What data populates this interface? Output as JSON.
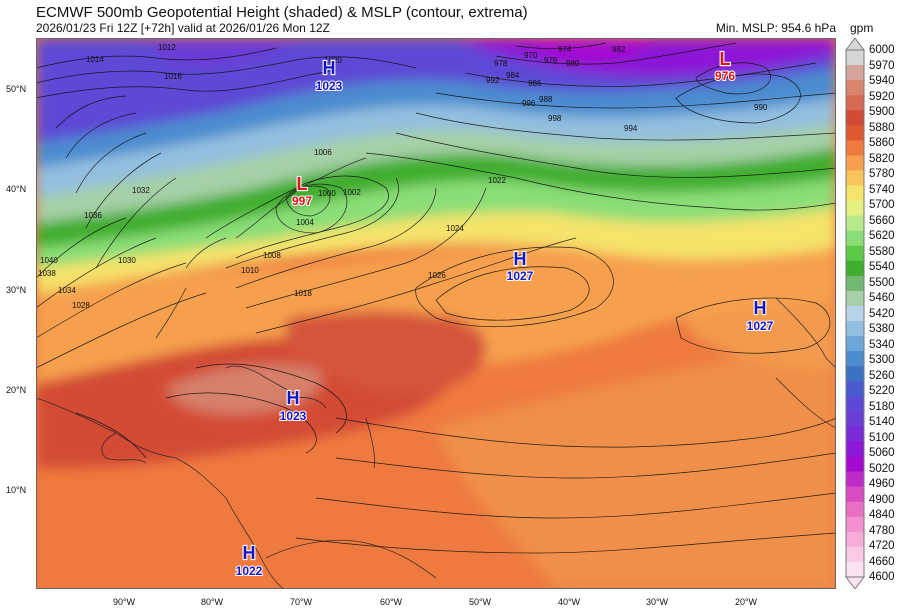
{
  "header": {
    "title": "ECMWF 500mb Geopotential Height (shaded) & MSLP (contour, extrema)",
    "subtitle": "2026/01/23 Fri 12Z [+72h] valid at 2026/01/26 Mon 12Z",
    "min_mslp": "Min. MSLP: 954.6 hPa",
    "unit": "gpm"
  },
  "axes": {
    "lat_labels": [
      "50°N",
      "40°N",
      "30°N",
      "20°N",
      "10°N"
    ],
    "lon_labels": [
      "90°W",
      "80°W",
      "70°W",
      "60°W",
      "50°W",
      "40°W",
      "30°W",
      "20°W"
    ]
  },
  "colorbar": {
    "labels": [
      "6000",
      "5970",
      "5940",
      "5920",
      "5900",
      "5880",
      "5860",
      "5820",
      "5780",
      "5740",
      "5700",
      "5660",
      "5620",
      "5580",
      "5540",
      "5500",
      "5460",
      "5420",
      "5380",
      "5340",
      "5300",
      "5260",
      "5220",
      "5180",
      "5140",
      "5100",
      "5060",
      "5020",
      "4960",
      "4900",
      "4840",
      "4780",
      "4720",
      "4660",
      "4600"
    ],
    "colors": [
      "#d6d6d6",
      "#d5a59c",
      "#d9846f",
      "#d66a55",
      "#d34b36",
      "#e0582f",
      "#ee7a3f",
      "#f6a04e",
      "#f9c45c",
      "#f5e36c",
      "#e4f07f",
      "#b8e98d",
      "#8bde77",
      "#5dc949",
      "#3fad2d",
      "#71b872",
      "#a6d0a7",
      "#b8d3e8",
      "#93bfe0",
      "#6da6d8",
      "#4b8ccf",
      "#3c72c2",
      "#4a5ad0",
      "#5d49d6",
      "#6b3ed6",
      "#7a2cd8",
      "#8d17d6",
      "#a40ad2",
      "#c02ac9",
      "#d84bc2",
      "#ea6fc4",
      "#f38ecf",
      "#f6acd9",
      "#f9c9e6",
      "#fbe3f1"
    ]
  },
  "extrema": [
    {
      "type": "H",
      "value": "1023",
      "color": "#1414c8"
    },
    {
      "type": "L",
      "value": "976",
      "color": "#e01010"
    },
    {
      "type": "L",
      "value": "997",
      "color": "#e01010"
    },
    {
      "type": "H",
      "value": "1027",
      "color": "#1414c8"
    },
    {
      "type": "H",
      "value": "1027",
      "color": "#1414c8"
    },
    {
      "type": "H",
      "value": "1023",
      "color": "#1414c8"
    },
    {
      "type": "H",
      "value": "1022",
      "color": "#1414c8"
    }
  ],
  "isobar_labels": [
    "1012",
    "1014",
    "1016",
    "1020",
    "1010",
    "1008",
    "1006",
    "1004",
    "1002",
    "1000",
    "1022",
    "1024",
    "1026",
    "1018",
    "1028",
    "1030",
    "1032",
    "1034",
    "1036",
    "1038",
    "1040",
    "978",
    "982",
    "984",
    "986",
    "988",
    "990",
    "992",
    "994",
    "996",
    "998",
    "970",
    "974",
    "976",
    "980"
  ]
}
